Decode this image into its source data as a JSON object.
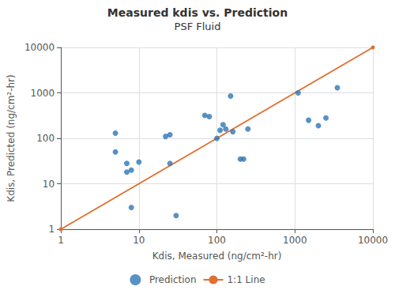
{
  "chart_data": {
    "type": "scatter",
    "title": "Measured kdis vs. Prediction",
    "subtitle": "PSF Fluid",
    "xlabel": "Kdis, Measured (ng/cm²-hr)",
    "ylabel": "Kdis, Predicted (ng/cm²-hr)",
    "log": true,
    "grid": true,
    "legend": "bottom",
    "xlim": [
      1,
      10000
    ],
    "ylim": [
      1,
      10000
    ],
    "xticks": [
      1,
      10,
      100,
      1000,
      10000
    ],
    "yticks": [
      1,
      10,
      100,
      1000,
      10000
    ],
    "series": [
      {
        "name": "Prediction",
        "type": "scatter",
        "color": "#2E75B6",
        "marker": "circle",
        "x": [
          5,
          5,
          7,
          7,
          8,
          8,
          10,
          22,
          25,
          25,
          30,
          70,
          80,
          100,
          110,
          120,
          130,
          150,
          160,
          200,
          220,
          250,
          1100,
          1500,
          2000,
          2500,
          3500
        ],
        "values": [
          50,
          130,
          18,
          28,
          3,
          20,
          30,
          110,
          120,
          28,
          2,
          320,
          300,
          100,
          150,
          200,
          160,
          850,
          140,
          35,
          35,
          160,
          1000,
          250,
          190,
          280,
          1300
        ]
      },
      {
        "name": "1:1 Line",
        "type": "line",
        "color": "#E07030",
        "marker": "circle",
        "line_style": "solid",
        "x": [
          1,
          10000
        ],
        "values": [
          1,
          10000
        ]
      }
    ]
  }
}
